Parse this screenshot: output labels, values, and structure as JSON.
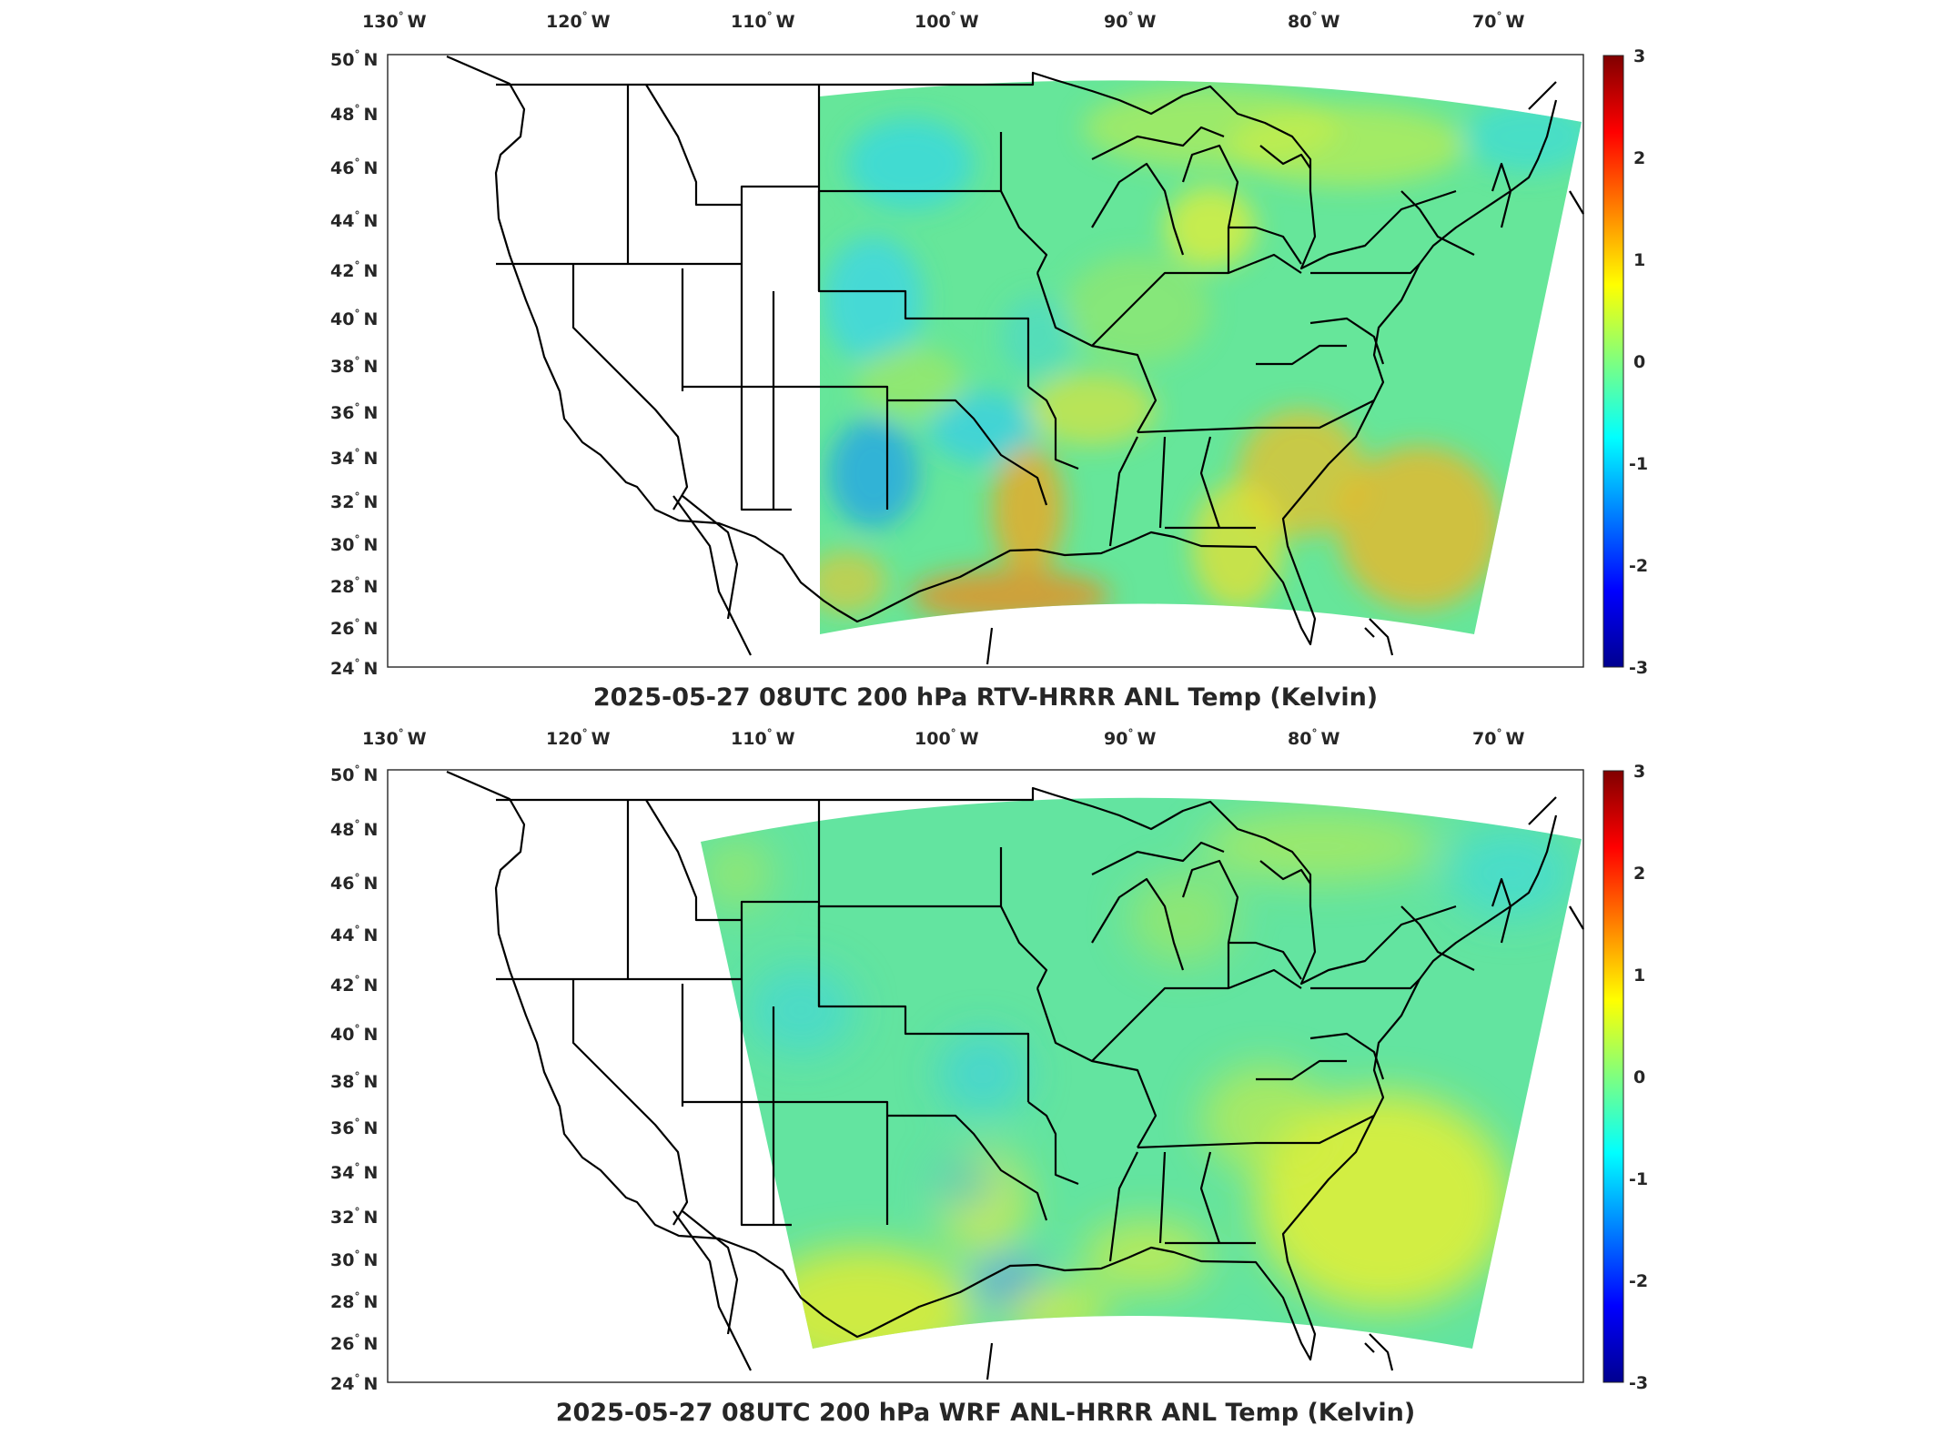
{
  "panels": [
    {
      "title": "2025-05-27 08UTC 200 hPa RTV-HRRR ANL Temp (Kelvin)",
      "lon_ticks": [
        "130",
        "120",
        "110",
        "100",
        "90",
        "80",
        "70"
      ],
      "lat_ticks": [
        "50",
        "48",
        "46",
        "44",
        "42",
        "40",
        "38",
        "36",
        "34",
        "32",
        "30",
        "28",
        "26",
        "24"
      ],
      "lon_hemisphere": "W",
      "lat_hemisphere": "N",
      "colorbar_ticks": [
        "3",
        "2",
        "1",
        "0",
        "-1",
        "-2",
        "-3"
      ]
    },
    {
      "title": "2025-05-27 08UTC 200 hPa WRF ANL-HRRR ANL Temp (Kelvin)",
      "lon_ticks": [
        "130",
        "120",
        "110",
        "100",
        "90",
        "80",
        "70"
      ],
      "lat_ticks": [
        "50",
        "48",
        "46",
        "44",
        "42",
        "40",
        "38",
        "36",
        "34",
        "32",
        "30",
        "28",
        "26",
        "24"
      ],
      "lon_hemisphere": "W",
      "lat_hemisphere": "N",
      "colorbar_ticks": [
        "3",
        "2",
        "1",
        "0",
        "-1",
        "-2",
        "-3"
      ]
    }
  ],
  "chart_data": [
    {
      "type": "heatmap",
      "title": "2025-05-27 08UTC 200 hPa RTV-HRRR ANL Temp (Kelvin)",
      "xlabel": "",
      "ylabel": "",
      "xlim": [
        -131,
        -65
      ],
      "ylim": [
        24,
        50
      ],
      "clim": [
        -3,
        3
      ],
      "colormap": "jet",
      "domain_west_lon": -107
    },
    {
      "type": "heatmap",
      "title": "2025-05-27 08UTC 200 hPa WRF ANL-HRRR ANL Temp (Kelvin)",
      "xlabel": "",
      "ylabel": "",
      "xlim": [
        -131,
        -65
      ],
      "ylim": [
        24,
        50
      ],
      "clim": [
        -3,
        3
      ],
      "colormap": "jet",
      "domain_west_lon": -113
    }
  ],
  "colors": {
    "field_base": "#5fe3a0",
    "warm": "#e9ee2e",
    "hot": "#f59a1c",
    "cool": "#36d6e6",
    "cold": "#1a7ef0",
    "borders": "#000000"
  }
}
